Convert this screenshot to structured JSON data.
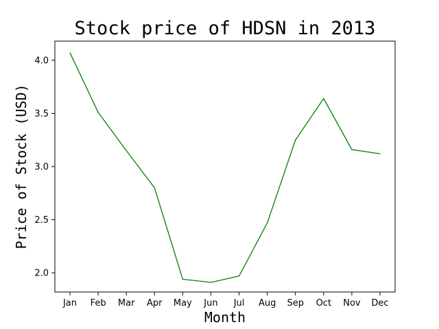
{
  "chart_data": {
    "type": "line",
    "title": "Stock price of HDSN in 2013",
    "xlabel": "Month",
    "ylabel": "Price of Stock (USD)",
    "categories": [
      "Jan",
      "Feb",
      "Mar",
      "Apr",
      "May",
      "Jun",
      "Jul",
      "Aug",
      "Sep",
      "Oct",
      "Nov",
      "Dec"
    ],
    "series": [
      {
        "values": [
          4.07,
          3.51,
          3.15,
          2.8,
          1.94,
          1.91,
          1.97,
          2.47,
          3.25,
          3.64,
          3.16,
          3.12
        ]
      }
    ],
    "ylim": [
      1.82,
      4.18
    ],
    "yticks": [
      2.0,
      2.5,
      3.0,
      3.5,
      4.0
    ],
    "ytick_labels": [
      "2.0",
      "2.5",
      "3.0",
      "3.5",
      "4.0"
    ],
    "line_color": "#008000",
    "grid": false,
    "legend": "none"
  }
}
